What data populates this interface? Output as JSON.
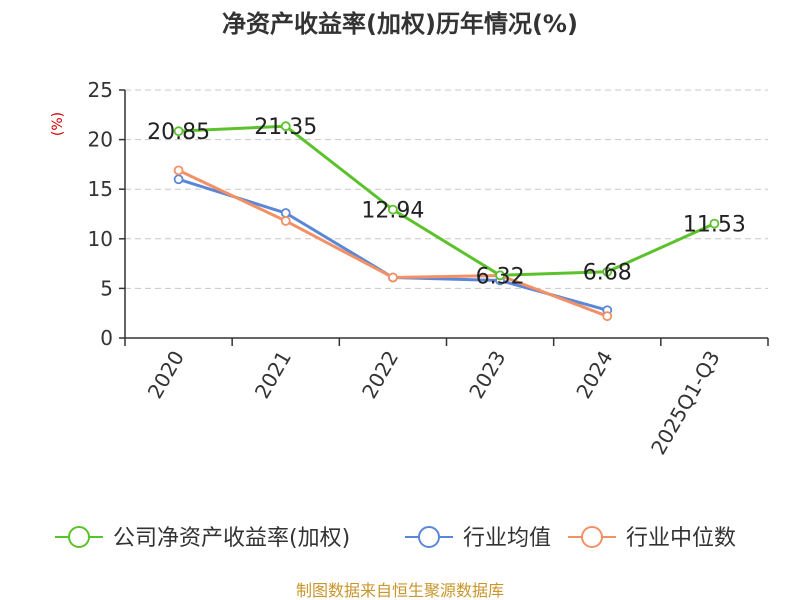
{
  "chart_data": {
    "type": "line",
    "title": "净资产收益率(加权)历年情况(%)",
    "ylabel": "(%)",
    "xlabel": "",
    "ylim": [
      0,
      25
    ],
    "yticks": [
      0,
      5,
      10,
      15,
      20,
      25
    ],
    "categories": [
      "2020",
      "2021",
      "2022",
      "2023",
      "2024",
      "2025Q1-Q3"
    ],
    "grid": "horizontal dashed",
    "legend_position": "bottom",
    "series": [
      {
        "name": "公司净资产收益率(加权)",
        "color": "#5cc22c",
        "values": [
          20.85,
          21.35,
          12.94,
          6.32,
          6.68,
          11.53
        ],
        "labels": [
          "20.85",
          "21.35",
          "12.94",
          "6.32",
          "6.68",
          "11.53"
        ]
      },
      {
        "name": "行业均值",
        "color": "#5b87d9",
        "values": [
          16.0,
          12.6,
          6.1,
          5.8,
          2.8,
          null
        ]
      },
      {
        "name": "行业中位数",
        "color": "#f39066",
        "values": [
          16.9,
          11.8,
          6.1,
          6.3,
          2.2,
          null
        ]
      }
    ],
    "source": "制图数据来自恒生聚源数据库"
  }
}
